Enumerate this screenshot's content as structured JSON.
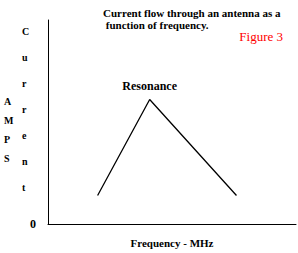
{
  "chart_data": {
    "type": "line",
    "title": "Current flow through an antenna as a function of frequency.",
    "subtitle": "Figure 3",
    "annotation": "Resonance",
    "xlabel": "Frequency - MHz",
    "ylabel": "Current",
    "yunit": "AMPS",
    "x": [
      2.0,
      4.1,
      7.6
    ],
    "values": [
      1.4,
      6.1,
      1.4
    ],
    "color": "#000000",
    "xlim": [
      0,
      10
    ],
    "ylim": [
      0,
      10
    ],
    "xticks": [],
    "yticks": [
      0
    ],
    "tick_labels": "y",
    "grid": false
  }
}
